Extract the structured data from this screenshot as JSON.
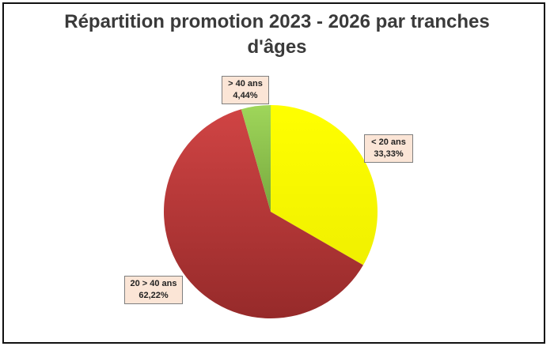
{
  "chart_data": {
    "type": "pie",
    "title_line1": "Répartition promotion 2023 - 2026 par tranches",
    "title_line2": "d'âges",
    "slices": [
      {
        "category": "< 20 ans",
        "value": 33.33,
        "value_label": "33,33%",
        "color": "#ffff00",
        "color_dark": "#f0f000"
      },
      {
        "category": "20 > 40 ans",
        "value": 62.22,
        "value_label": "62,22%",
        "color": "#d04444",
        "color_dark": "#962a2a"
      },
      {
        "category": "> 40 ans",
        "value": 4.44,
        "value_label": "4,44%",
        "color": "#9fd65a",
        "color_dark": "#77a83e"
      }
    ],
    "start_angle_deg": 0,
    "direction": "clockwise",
    "legend": "none",
    "data_labels": "callout boxes with category and percentage"
  }
}
